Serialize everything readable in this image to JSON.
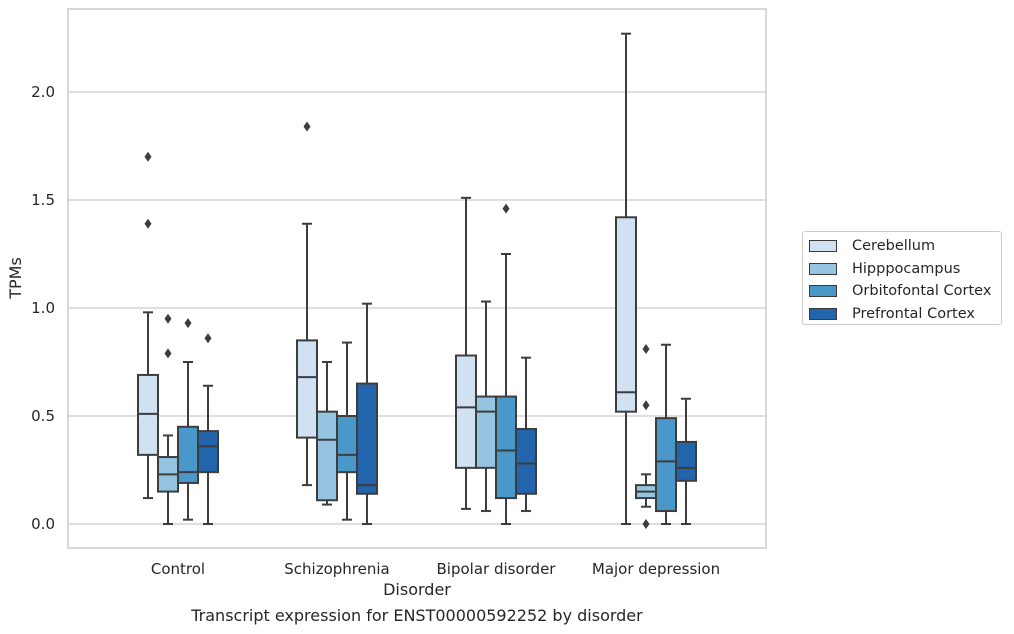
{
  "caption": "Transcript expression for ENST00000592252 by disorder",
  "chart_data": {
    "type": "boxplot",
    "xlabel": "Disorder",
    "ylabel": "TPMs",
    "ylim": [
      -0.11,
      2.39
    ],
    "yticks": [
      "0.0",
      "0.5",
      "1.0",
      "1.5",
      "2.0"
    ],
    "grid": true,
    "legend_position": "right",
    "categories": [
      "Control",
      "Schizophrenia",
      "Bipolar disorder",
      "Major depression"
    ],
    "series": [
      {
        "name": "Cerebellum",
        "color": "#d0e1f2",
        "boxes": [
          {
            "whisker_low": 0.12,
            "q1": 0.32,
            "median": 0.51,
            "q3": 0.69,
            "whisker_high": 0.98,
            "outliers": [
              1.39,
              1.7
            ]
          },
          {
            "whisker_low": 0.18,
            "q1": 0.4,
            "median": 0.68,
            "q3": 0.85,
            "whisker_high": 1.39,
            "outliers": [
              1.84
            ]
          },
          {
            "whisker_low": 0.07,
            "q1": 0.26,
            "median": 0.54,
            "q3": 0.78,
            "whisker_high": 1.51,
            "outliers": []
          },
          {
            "whisker_low": 0.0,
            "q1": 0.52,
            "median": 0.61,
            "q3": 1.42,
            "whisker_high": 2.27,
            "outliers": []
          }
        ]
      },
      {
        "name": "Hipppocampus",
        "color": "#94c4df",
        "boxes": [
          {
            "whisker_low": 0.0,
            "q1": 0.15,
            "median": 0.23,
            "q3": 0.31,
            "whisker_high": 0.41,
            "outliers": [
              0.79,
              0.95
            ]
          },
          {
            "whisker_low": 0.09,
            "q1": 0.11,
            "median": 0.39,
            "q3": 0.52,
            "whisker_high": 0.75,
            "outliers": []
          },
          {
            "whisker_low": 0.06,
            "q1": 0.26,
            "median": 0.52,
            "q3": 0.59,
            "whisker_high": 1.03,
            "outliers": []
          },
          {
            "whisker_low": 0.08,
            "q1": 0.12,
            "median": 0.15,
            "q3": 0.18,
            "whisker_high": 0.23,
            "outliers": [
              0.0,
              0.55,
              0.81
            ]
          }
        ]
      },
      {
        "name": "Orbitofontal Cortex",
        "color": "#4a98c9",
        "boxes": [
          {
            "whisker_low": 0.02,
            "q1": 0.19,
            "median": 0.24,
            "q3": 0.45,
            "whisker_high": 0.75,
            "outliers": [
              0.93
            ]
          },
          {
            "whisker_low": 0.02,
            "q1": 0.24,
            "median": 0.32,
            "q3": 0.5,
            "whisker_high": 0.84,
            "outliers": []
          },
          {
            "whisker_low": 0.0,
            "q1": 0.12,
            "median": 0.34,
            "q3": 0.59,
            "whisker_high": 1.25,
            "outliers": [
              1.46
            ]
          },
          {
            "whisker_low": 0.0,
            "q1": 0.06,
            "median": 0.29,
            "q3": 0.49,
            "whisker_high": 0.83,
            "outliers": []
          }
        ]
      },
      {
        "name": "Prefrontal Cortex",
        "color": "#2265ad",
        "boxes": [
          {
            "whisker_low": 0.0,
            "q1": 0.24,
            "median": 0.36,
            "q3": 0.43,
            "whisker_high": 0.64,
            "outliers": [
              0.86
            ]
          },
          {
            "whisker_low": 0.0,
            "q1": 0.14,
            "median": 0.18,
            "q3": 0.65,
            "whisker_high": 1.02,
            "outliers": []
          },
          {
            "whisker_low": 0.06,
            "q1": 0.14,
            "median": 0.28,
            "q3": 0.44,
            "whisker_high": 0.77,
            "outliers": []
          },
          {
            "whisker_low": 0.0,
            "q1": 0.2,
            "median": 0.26,
            "q3": 0.38,
            "whisker_high": 0.58,
            "outliers": []
          }
        ]
      }
    ]
  }
}
